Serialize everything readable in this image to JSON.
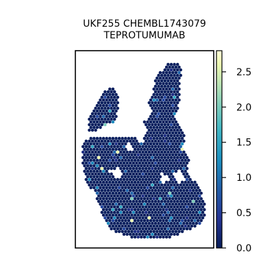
{
  "chart_data": {
    "type": "scatter",
    "subtype": "spatial-hexbin",
    "title_line1": "UKF255 CHEMBL1743079",
    "title_line2": "TEPROTUMUMAB",
    "xlabel": "",
    "ylabel": "",
    "axes_ticks_visible": false,
    "grid": false,
    "colorbar": {
      "position": "right",
      "colormap": "YlGnBu_r",
      "range": [
        0,
        2.8
      ],
      "ticks": [
        0.0,
        0.5,
        1.0,
        1.5,
        2.0,
        2.5
      ],
      "tick_labels": [
        "0.0",
        "0.5",
        "1.0",
        "1.5",
        "2.0",
        "2.5"
      ]
    },
    "colors": {
      "low": "#081d58",
      "mid": "#1d91c0",
      "high": "#ffffd9"
    },
    "value_distribution": {
      "dominant_value": 0.05,
      "note_values": [
        0.3,
        0.6,
        0.9,
        1.2,
        1.5,
        2.0,
        2.6
      ]
    }
  }
}
